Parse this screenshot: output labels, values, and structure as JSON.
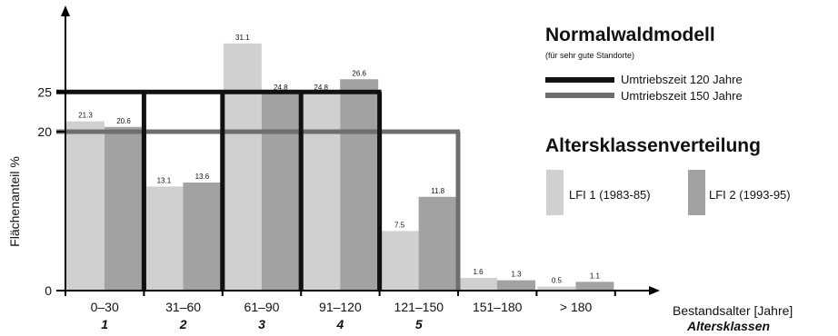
{
  "colors": {
    "lfi1": "#d0d0d0",
    "lfi2": "#a2a2a2",
    "model120": "#111111",
    "model150": "#6e6e6e",
    "axis": "#000000"
  },
  "chart_data": {
    "type": "bar",
    "ylabel": "Flächenanteil %",
    "xlabel": "Bestandsalter [Jahre]",
    "xlabel2": "Altersklassen",
    "categories": [
      "0–30",
      "31–60",
      "61–90",
      "91–120",
      "121–150",
      "151–180",
      "> 180"
    ],
    "class_numbers": [
      "1",
      "2",
      "3",
      "4",
      "5",
      "",
      ""
    ],
    "yticks": [
      "0",
      "20",
      "25"
    ],
    "ylim": [
      0,
      35
    ],
    "series": [
      {
        "name": "LFI 1 (1983-85)",
        "values": [
          21.3,
          13.1,
          31.1,
          24.8,
          7.5,
          1.6,
          0.5
        ],
        "labels": [
          "21.3",
          "13.1",
          "31.1",
          "24.8",
          "7.5",
          "1.6",
          "0.5"
        ]
      },
      {
        "name": "LFI 2 (1993-95)",
        "values": [
          20.6,
          13.6,
          24.8,
          26.6,
          11.8,
          1.3,
          1.1
        ],
        "labels": [
          "20.6",
          "13.6",
          "24.8",
          "26.6",
          "11.8",
          "1.3",
          "1.1"
        ]
      }
    ],
    "model_lines": [
      {
        "name": "Umtriebszeit 120 Jahre",
        "value": 25,
        "classes": 4
      },
      {
        "name": "Umtriebszeit 150 Jahre",
        "value": 20,
        "classes": 5
      }
    ],
    "legend": {
      "model_title": "Normalwaldmodell",
      "model_subtitle": "(für sehr gute Standorte)",
      "distribution_title": "Altersklassenverteilung"
    }
  }
}
